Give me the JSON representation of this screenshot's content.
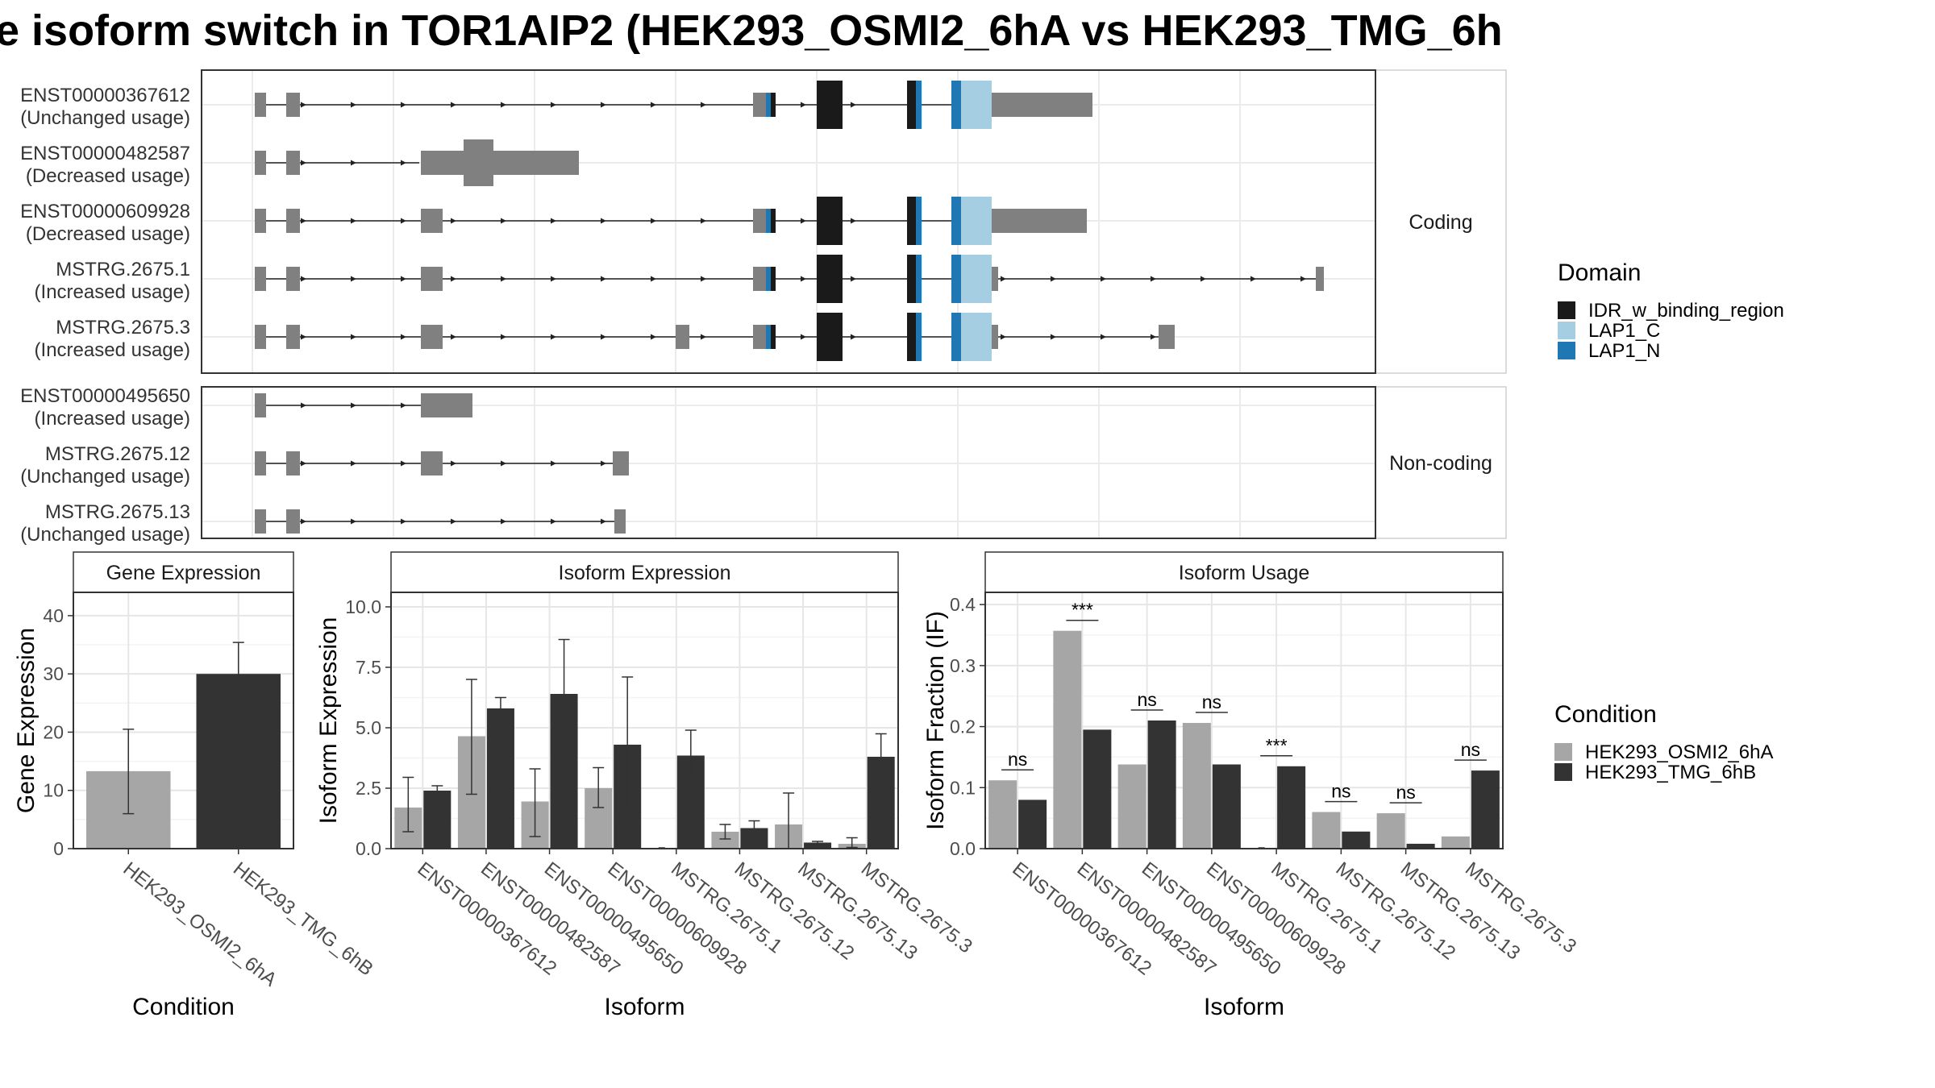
{
  "title": "e isoform switch in TOR1AIP2 (HEK293_OSMI2_6hA vs HEK293_TMG_6h",
  "colors": {
    "exon": "#808080",
    "idr": "#1a1a1a",
    "lap1c": "#a6cee3",
    "lap1n": "#1f78b4",
    "cond1": "#a6a6a6",
    "cond2": "#333333"
  },
  "legends": {
    "domain": {
      "title": "Domain",
      "items": [
        {
          "label": "IDR_w_binding_region",
          "color": "#1a1a1a"
        },
        {
          "label": "LAP1_C",
          "color": "#a6cee3"
        },
        {
          "label": "LAP1_N",
          "color": "#1f78b4"
        }
      ]
    },
    "condition": {
      "title": "Condition",
      "items": [
        {
          "label": "HEK293_OSMI2_6hA",
          "color": "#a6a6a6"
        },
        {
          "label": "HEK293_TMG_6hB",
          "color": "#333333"
        }
      ]
    }
  },
  "structure": {
    "coding_label": "Coding",
    "noncoding_label": "Non-coding",
    "coding": [
      {
        "id": "ENST00000367612",
        "usage": "(Unchanged usage)"
      },
      {
        "id": "ENST00000482587",
        "usage": "(Decreased usage)"
      },
      {
        "id": "ENST00000609928",
        "usage": "(Decreased usage)"
      },
      {
        "id": "MSTRG.2675.1",
        "usage": "(Increased usage)"
      },
      {
        "id": "MSTRG.2675.3",
        "usage": "(Increased usage)"
      }
    ],
    "noncoding": [
      {
        "id": "ENST00000495650",
        "usage": "(Increased usage)"
      },
      {
        "id": "MSTRG.2675.12",
        "usage": "(Unchanged usage)"
      },
      {
        "id": "MSTRG.2675.13",
        "usage": "(Unchanged usage)"
      }
    ]
  },
  "chart_data": [
    {
      "type": "bar",
      "title": "Gene Expression",
      "xlabel": "Condition",
      "ylabel": "Gene Expression",
      "ylim": [
        0,
        44
      ],
      "yticks": [
        0,
        10,
        20,
        30,
        40
      ],
      "categories": [
        "HEK293_OSMI2_6hA",
        "HEK293_TMG_6hB"
      ],
      "values": [
        13.3,
        30.0
      ],
      "errors": [
        [
          6.0,
          20.5
        ],
        [
          24.8,
          35.4
        ]
      ],
      "grid": true
    },
    {
      "type": "bar",
      "title": "Isoform Expression",
      "xlabel": "Isoform",
      "ylabel": "Isoform Expression",
      "ylim": [
        0,
        10.6
      ],
      "yticks": [
        0.0,
        2.5,
        5.0,
        7.5,
        10.0
      ],
      "categories": [
        "ENST00000367612",
        "ENST00000482587",
        "ENST00000495650",
        "ENST00000609928",
        "MSTRG.2675.1",
        "MSTRG.2675.12",
        "MSTRG.2675.13",
        "MSTRG.2675.3"
      ],
      "series": [
        {
          "name": "HEK293_OSMI2_6hA",
          "values": [
            1.7,
            4.65,
            1.95,
            2.5,
            0.0,
            0.7,
            1.0,
            0.2
          ],
          "errors": [
            [
              0.7,
              2.95
            ],
            [
              2.25,
              7.0
            ],
            [
              0.5,
              3.3
            ],
            [
              1.7,
              3.35
            ],
            null,
            [
              0.4,
              1.0
            ],
            [
              0.0,
              2.3
            ],
            [
              0.05,
              0.45
            ]
          ]
        },
        {
          "name": "HEK293_TMG_6hB",
          "values": [
            2.4,
            5.8,
            6.4,
            4.3,
            3.85,
            0.85,
            0.25,
            3.8
          ],
          "errors": [
            [
              2.2,
              2.6
            ],
            [
              5.35,
              6.25
            ],
            [
              4.6,
              8.65
            ],
            [
              1.6,
              7.1
            ],
            [
              2.95,
              4.9
            ],
            [
              0.55,
              1.15
            ],
            [
              0.2,
              0.3
            ],
            [
              2.9,
              4.75
            ]
          ]
        }
      ],
      "grid": true
    },
    {
      "type": "bar",
      "title": "Isoform Usage",
      "xlabel": "Isoform",
      "ylabel": "Isoform Fraction (IF)",
      "ylim": [
        0,
        0.42
      ],
      "yticks": [
        0.0,
        0.1,
        0.2,
        0.3,
        0.4
      ],
      "categories": [
        "ENST00000367612",
        "ENST00000482587",
        "ENST00000495650",
        "ENST00000609928",
        "MSTRG.2675.1",
        "MSTRG.2675.12",
        "MSTRG.2675.13",
        "MSTRG.2675.3"
      ],
      "series": [
        {
          "name": "HEK293_OSMI2_6hA",
          "values": [
            0.112,
            0.357,
            0.138,
            0.206,
            0.0,
            0.06,
            0.058,
            0.02
          ]
        },
        {
          "name": "HEK293_TMG_6hB",
          "values": [
            0.08,
            0.195,
            0.21,
            0.138,
            0.135,
            0.028,
            0.008,
            0.128
          ]
        }
      ],
      "significance": [
        "ns",
        "***",
        "ns",
        "ns",
        "***",
        "ns",
        "ns",
        "ns"
      ],
      "grid": true
    }
  ]
}
